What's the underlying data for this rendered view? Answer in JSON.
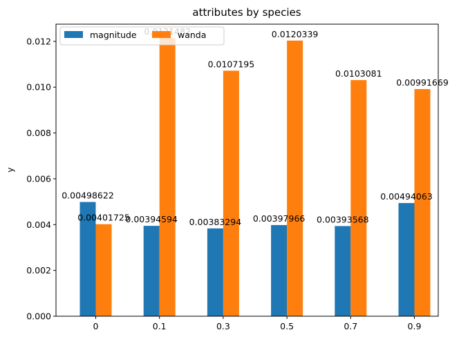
{
  "chart_data": {
    "type": "bar",
    "title": "attributes by species",
    "xlabel": "",
    "ylabel": "y",
    "categories": [
      "0",
      "0.1",
      "0.3",
      "0.5",
      "0.7",
      "0.9"
    ],
    "series": [
      {
        "name": "magnitude",
        "color": "#1f77b4",
        "values": [
          0.00498622,
          0.00394594,
          0.00383294,
          0.00397966,
          0.00393568,
          0.00494063
        ],
        "labels": [
          "0.00498622",
          "0.00394594",
          "0.00383294",
          "0.00397966",
          "0.00393568",
          "0.00494063"
        ]
      },
      {
        "name": "wanda",
        "color": "#ff7f0e",
        "values": [
          0.00401725,
          0.0121482,
          0.0107195,
          0.0120339,
          0.0103081,
          0.00991669
        ],
        "labels": [
          "0.00401725",
          "0.0121482",
          "0.0107195",
          "0.0120339",
          "0.0103081",
          "0.00991669"
        ]
      }
    ],
    "ylim": [
      0,
      0.01275
    ],
    "yticks": [
      "0.000",
      "0.002",
      "0.004",
      "0.006",
      "0.008",
      "0.010",
      "0.012"
    ],
    "ytick_values": [
      0,
      0.002,
      0.004,
      0.006,
      0.008,
      0.01,
      0.012
    ],
    "grid": false,
    "legend_position": "top-left"
  }
}
